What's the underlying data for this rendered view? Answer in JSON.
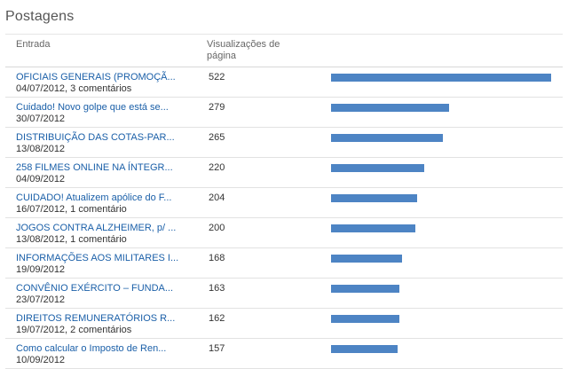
{
  "panel": {
    "title": "Postagens"
  },
  "columns": {
    "entry": "Entrada",
    "views": "Visualizações de página"
  },
  "colors": {
    "bar": "#4d84c4",
    "link": "#1a5fa8"
  },
  "chart_data": {
    "type": "bar",
    "orientation": "horizontal",
    "categories": [
      "OFICIAIS GENERAIS (PROMOÇÃ...",
      "Cuidado! Novo golpe que está se...",
      "DISTRIBUIÇÃO DAS COTAS-PAR...",
      "258 FILMES ONLINE NA ÍNTEGR...",
      "CUIDADO! Atualizem apólice do F...",
      "JOGOS CONTRA ALZHEIMER, p/ ...",
      "INFORMAÇÕES AOS MILITARES I...",
      "CONVÊNIO EXÉRCITO – FUNDA...",
      "DIREITOS REMUNERATÓRIOS R...",
      "Como calcular o Imposto de Ren..."
    ],
    "values": [
      522,
      279,
      265,
      220,
      204,
      200,
      168,
      163,
      162,
      157
    ],
    "xlim": [
      0,
      522
    ]
  },
  "rows": [
    {
      "title": "OFICIAIS GENERAIS (PROMOÇÃ...",
      "meta": "04/07/2012, 3 comentários",
      "views": "522"
    },
    {
      "title": "Cuidado! Novo golpe que está se...",
      "meta": "30/07/2012",
      "views": "279"
    },
    {
      "title": "DISTRIBUIÇÃO DAS COTAS-PAR...",
      "meta": "13/08/2012",
      "views": "265"
    },
    {
      "title": "258 FILMES ONLINE NA ÍNTEGR...",
      "meta": "04/09/2012",
      "views": "220"
    },
    {
      "title": "CUIDADO! Atualizem apólice do F...",
      "meta": "16/07/2012, 1 comentário",
      "views": "204"
    },
    {
      "title": "JOGOS CONTRA ALZHEIMER, p/ ...",
      "meta": "13/08/2012, 1 comentário",
      "views": "200"
    },
    {
      "title": "INFORMAÇÕES AOS MILITARES I...",
      "meta": "19/09/2012",
      "views": "168"
    },
    {
      "title": "CONVÊNIO EXÉRCITO – FUNDA...",
      "meta": "23/07/2012",
      "views": "163"
    },
    {
      "title": "DIREITOS REMUNERATÓRIOS R...",
      "meta": "19/07/2012, 2 comentários",
      "views": "162"
    },
    {
      "title": "Como calcular o Imposto de Ren...",
      "meta": "10/09/2012",
      "views": "157"
    }
  ]
}
